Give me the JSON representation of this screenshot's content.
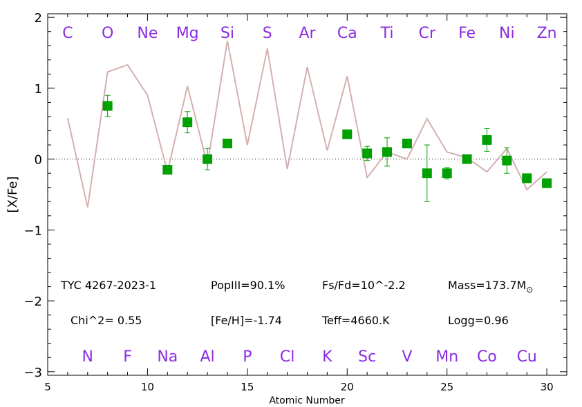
{
  "chart_data": {
    "type": "scatter",
    "xlabel": "Atomic Number",
    "ylabel": "[X/Fe]",
    "xlim": [
      5,
      31
    ],
    "ylim": [
      -3.05,
      2.05
    ],
    "xticks": [
      5,
      10,
      15,
      20,
      25,
      30
    ],
    "yticks": [
      -3,
      -2,
      -1,
      0,
      1,
      2
    ],
    "reference_line_y": 0,
    "colors": {
      "observed": "#00a000",
      "model": "#d4b0b0",
      "element_labels": "#8a2be2",
      "reference_line": "#000000"
    },
    "top_elements": [
      {
        "symbol": "C",
        "z": 6
      },
      {
        "symbol": "O",
        "z": 8
      },
      {
        "symbol": "Ne",
        "z": 10
      },
      {
        "symbol": "Mg",
        "z": 12
      },
      {
        "symbol": "Si",
        "z": 14
      },
      {
        "symbol": "S",
        "z": 16
      },
      {
        "symbol": "Ar",
        "z": 18
      },
      {
        "symbol": "Ca",
        "z": 20
      },
      {
        "symbol": "Ti",
        "z": 22
      },
      {
        "symbol": "Cr",
        "z": 24
      },
      {
        "symbol": "Fe",
        "z": 26
      },
      {
        "symbol": "Ni",
        "z": 28
      },
      {
        "symbol": "Zn",
        "z": 30
      }
    ],
    "bottom_elements": [
      {
        "symbol": "N",
        "z": 7
      },
      {
        "symbol": "F",
        "z": 9
      },
      {
        "symbol": "Na",
        "z": 11
      },
      {
        "symbol": "Al",
        "z": 13
      },
      {
        "symbol": "P",
        "z": 15
      },
      {
        "symbol": "Cl",
        "z": 17
      },
      {
        "symbol": "K",
        "z": 19
      },
      {
        "symbol": "Sc",
        "z": 21
      },
      {
        "symbol": "V",
        "z": 23
      },
      {
        "symbol": "Mn",
        "z": 25
      },
      {
        "symbol": "Co",
        "z": 27
      },
      {
        "symbol": "Cu",
        "z": 29
      }
    ],
    "series": [
      {
        "kind": "observed_with_errors",
        "points": [
          {
            "x": 8,
            "y": 0.75,
            "err": 0.15
          },
          {
            "x": 11,
            "y": -0.15,
            "err": 0.0
          },
          {
            "x": 12,
            "y": 0.52,
            "err": 0.15
          },
          {
            "x": 13,
            "y": 0.0,
            "err": 0.15
          },
          {
            "x": 14,
            "y": 0.22,
            "err": 0.0
          },
          {
            "x": 20,
            "y": 0.35,
            "err": 0.05
          },
          {
            "x": 21,
            "y": 0.08,
            "err": 0.1
          },
          {
            "x": 22,
            "y": 0.1,
            "err": 0.2
          },
          {
            "x": 23,
            "y": 0.22,
            "err": 0.0
          },
          {
            "x": 24,
            "y": -0.2,
            "err": 0.4
          },
          {
            "x": 25,
            "y": -0.2,
            "err": 0.08
          },
          {
            "x": 26,
            "y": 0.0,
            "err": 0.0
          },
          {
            "x": 27,
            "y": 0.27,
            "err": 0.16
          },
          {
            "x": 28,
            "y": -0.02,
            "err": 0.18
          },
          {
            "x": 29,
            "y": -0.27,
            "err": 0.0
          },
          {
            "x": 30,
            "y": -0.34,
            "err": 0.0
          }
        ]
      },
      {
        "kind": "model",
        "x": [
          6,
          7,
          8,
          9,
          10,
          11,
          12,
          13,
          14,
          15,
          16,
          17,
          18,
          19,
          20,
          21,
          22,
          23,
          24,
          25,
          26,
          27,
          28,
          29,
          30
        ],
        "y": [
          0.58,
          -0.68,
          1.23,
          1.33,
          0.9,
          -0.18,
          1.03,
          -0.08,
          1.67,
          0.2,
          1.56,
          -0.14,
          1.3,
          0.12,
          1.17,
          -0.26,
          0.1,
          0.0,
          0.57,
          0.1,
          0.02,
          -0.18,
          0.15,
          -0.43,
          -0.18
        ]
      }
    ]
  },
  "annotations": {
    "star_name": "TYC 4267-2023-1",
    "popIII": "PopIII=90.1%",
    "fs_fd": "Fs/Fd=10^-2.2",
    "mass_prefix": "Mass=173.7M",
    "mass_sub": "⊙",
    "chi2": "Chi^2= 0.55",
    "feh": "[Fe/H]=-1.74",
    "teff": "Teff=4660.K",
    "logg": "Logg=0.96"
  }
}
